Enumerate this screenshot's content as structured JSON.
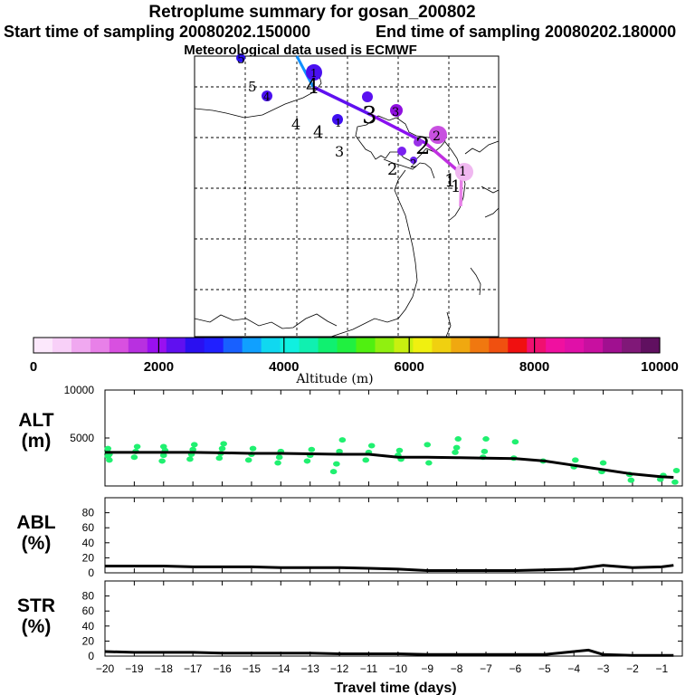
{
  "title": "Retroplume summary for gosan_200802",
  "start_label": "Start time of sampling 20080202.150000",
  "end_label": "End time of sampling 20080202.180000",
  "met_label": "Meteorological data used is ECMWF",
  "map": {
    "trajectory_labels": [
      "5",
      "4",
      "4",
      "3",
      "2",
      "1",
      "1"
    ],
    "cluster_labels": [
      "5",
      "4",
      "4",
      "3",
      "3",
      "2",
      "2",
      "2",
      "1",
      "1",
      "1"
    ]
  },
  "colorbar": {
    "title": "Altitude (m)",
    "tick_labels": [
      "0",
      "2000",
      "4000",
      "6000",
      "8000",
      "10000"
    ],
    "range": [
      0,
      10000
    ],
    "colors": [
      "#fce8fc",
      "#f8d0f8",
      "#f0a8f0",
      "#e880e8",
      "#d850e0",
      "#b830e0",
      "#9a10f0",
      "#6010f0",
      "#2a10f0",
      "#2020ff",
      "#1860ff",
      "#10a0ff",
      "#10d8f0",
      "#10f0e0",
      "#10f0b0",
      "#10f070",
      "#20f040",
      "#50f010",
      "#90f010",
      "#c8f010",
      "#f0f010",
      "#f0d010",
      "#f0a810",
      "#f07810",
      "#f05010",
      "#f01010",
      "#f01070",
      "#f010a0",
      "#e010a8",
      "#c810a0",
      "#a01090",
      "#801878",
      "#601060"
    ]
  },
  "chart_data": [
    {
      "type": "line",
      "title": "ALT (m)",
      "ylabel_line1": "ALT",
      "ylabel_line2": "(m)",
      "ylim": [
        0,
        10000
      ],
      "yticks": [
        5000,
        10000
      ],
      "x": [
        -20,
        -19,
        -18,
        -17,
        -16,
        -15,
        -14,
        -13,
        -12,
        -11,
        -10,
        -9,
        -8,
        -7,
        -6,
        -5,
        -4,
        -3,
        -2,
        -1,
        -0.6
      ],
      "values": [
        3500,
        3500,
        3500,
        3500,
        3450,
        3400,
        3400,
        3350,
        3300,
        3300,
        3000,
        3000,
        2950,
        2900,
        2850,
        2600,
        2150,
        1700,
        1250,
        950,
        900
      ],
      "scatter_color": "#20f070",
      "scatter": {
        "x": [
          -19.9,
          -19.9,
          -19.9,
          -19.85,
          -19.85,
          -19,
          -18.95,
          -18.9,
          -18.05,
          -18,
          -17.95,
          -18,
          -17.1,
          -17.05,
          -17.0,
          -16.95,
          -16.1,
          -16.05,
          -16.0,
          -15.95,
          -15.1,
          -15.0,
          -14.95,
          -14.1,
          -14.05,
          -14.0,
          -13.1,
          -13.0,
          -12.95,
          -12.2,
          -12.1,
          -12.0,
          -11.9,
          -11.1,
          -11.0,
          -10.9,
          -10.0,
          -9.95,
          -9.9,
          -9.0,
          -8.95,
          -8.05,
          -8.0,
          -7.95,
          -7.1,
          -7.05,
          -7.0,
          -6.05,
          -6.0,
          -5.05,
          -4.0,
          -3.95,
          -3.05,
          -3.0,
          -2.1,
          -2.05,
          -1.05,
          -0.95,
          -0.55,
          -0.5
        ],
        "y": [
          3100,
          3500,
          3900,
          3300,
          2700,
          3000,
          3600,
          4100,
          2600,
          3200,
          3700,
          4100,
          2800,
          3300,
          3800,
          4300,
          2900,
          3400,
          3900,
          4400,
          2700,
          3300,
          3900,
          2400,
          3000,
          3600,
          2600,
          3200,
          3800,
          1500,
          2300,
          3600,
          4800,
          2700,
          3500,
          4200,
          3200,
          3700,
          2800,
          4300,
          2400,
          3500,
          4000,
          4900,
          3000,
          3600,
          4900,
          2900,
          4600,
          2600,
          2000,
          2700,
          1500,
          2400,
          1200,
          600,
          700,
          1100,
          400,
          1600
        ]
      }
    },
    {
      "type": "line",
      "title": "ABL (%)",
      "ylabel_line1": "ABL",
      "ylabel_line2": "(%)",
      "ylim": [
        0,
        100
      ],
      "yticks": [
        0,
        20,
        40,
        60,
        80
      ],
      "x": [
        -20,
        -19,
        -18,
        -17,
        -16,
        -15,
        -14,
        -13,
        -12,
        -11,
        -10,
        -9,
        -8,
        -7,
        -6,
        -5,
        -4,
        -3,
        -2,
        -1,
        -0.6
      ],
      "values": [
        9,
        9,
        9,
        8,
        8,
        8,
        7,
        7,
        7,
        6,
        5,
        3,
        3,
        3,
        3,
        4,
        5,
        10,
        7,
        8,
        10
      ]
    },
    {
      "type": "line",
      "title": "STR (%)",
      "ylabel_line1": "STR",
      "ylabel_line2": "(%)",
      "ylim": [
        0,
        100
      ],
      "yticks": [
        0,
        20,
        40,
        60,
        80
      ],
      "x": [
        -20,
        -19,
        -18,
        -17,
        -16,
        -15,
        -14,
        -13,
        -12,
        -11,
        -10,
        -9,
        -8,
        -7,
        -6,
        -5,
        -4,
        -3.5,
        -3,
        -2,
        -1,
        -0.6
      ],
      "values": [
        6,
        5,
        5,
        5,
        4,
        4,
        4,
        4,
        3,
        3,
        3,
        2,
        2,
        2,
        2,
        2,
        6,
        8,
        2,
        1,
        1,
        1
      ],
      "xlabel": "Travel time (days)",
      "xtick_labels": [
        "−20",
        "−19",
        "−18",
        "−17",
        "−16",
        "−15",
        "−14",
        "−13",
        "−12",
        "−11",
        "−10",
        "−9",
        "−8",
        "−7",
        "−6",
        "−5",
        "−4",
        "−3",
        "−2",
        "−1"
      ]
    }
  ]
}
